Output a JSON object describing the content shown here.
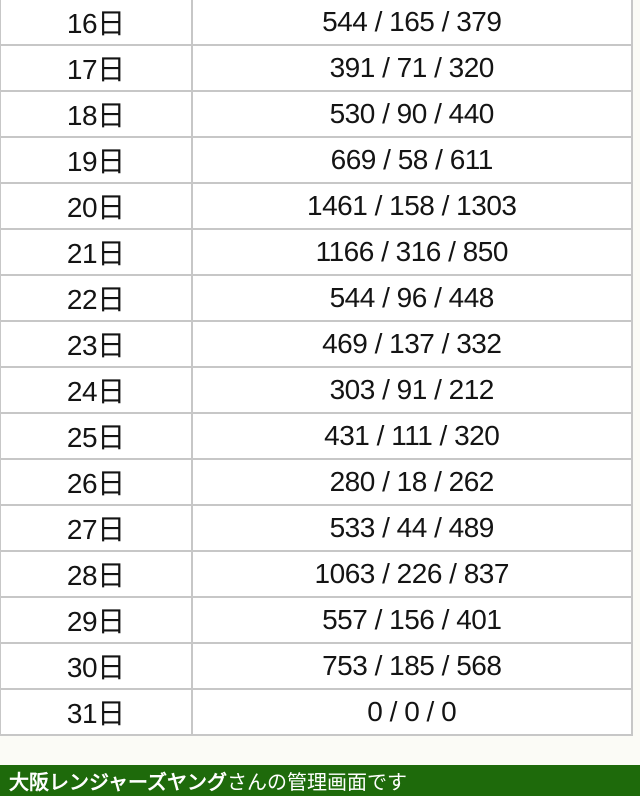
{
  "table": {
    "columns": [
      "day",
      "counts"
    ],
    "counts_format": "total / new / repeat",
    "rows": [
      {
        "day": "16日",
        "counts": "544 / 165 / 379"
      },
      {
        "day": "17日",
        "counts": "391 / 71 / 320"
      },
      {
        "day": "18日",
        "counts": "530 / 90 / 440"
      },
      {
        "day": "19日",
        "counts": "669 / 58 / 611"
      },
      {
        "day": "20日",
        "counts": "1461 / 158 / 1303"
      },
      {
        "day": "21日",
        "counts": "1166 / 316 / 850"
      },
      {
        "day": "22日",
        "counts": "544 / 96 / 448"
      },
      {
        "day": "23日",
        "counts": "469 / 137 / 332"
      },
      {
        "day": "24日",
        "counts": "303 / 91 / 212"
      },
      {
        "day": "25日",
        "counts": "431 / 111 / 320"
      },
      {
        "day": "26日",
        "counts": "280 / 18 / 262"
      },
      {
        "day": "27日",
        "counts": "533 / 44 / 489"
      },
      {
        "day": "28日",
        "counts": "1063 / 226 / 837"
      },
      {
        "day": "29日",
        "counts": "557 / 156 / 401"
      },
      {
        "day": "30日",
        "counts": "753 / 185 / 568"
      },
      {
        "day": "31日",
        "counts": "0 / 0 / 0"
      }
    ]
  },
  "footer": {
    "owner_name": "大阪レンジャーズヤング",
    "suffix": "さんの管理画面です"
  },
  "colors": {
    "footer_bg": "#1e6a0b",
    "footer_text": "#ffffff",
    "table_border": "#c7c7c7",
    "cell_bg": "#ffffff",
    "cell_text": "#141414",
    "page_bg": "#fbfbf6"
  }
}
